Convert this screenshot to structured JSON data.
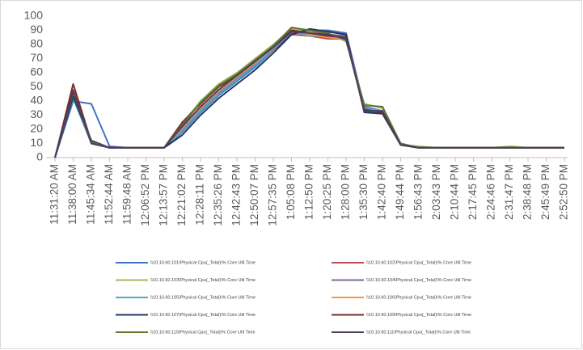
{
  "chart_data": {
    "type": "line",
    "categories": [
      "11:31:20 AM",
      "11:38:00 AM",
      "11:45:34 AM",
      "11:52:44 AM",
      "11:59:48 AM",
      "12:06:52 PM",
      "12:13:57 PM",
      "12:21:02 PM",
      "12:28:11 PM",
      "12:35:26 PM",
      "12:42:43 PM",
      "12:50:07 PM",
      "12:57:35 PM",
      "1:05:08 PM",
      "1:12:50 PM",
      "1:20:25 PM",
      "1:28:00 PM",
      "1:35:30 PM",
      "1:42:40 PM",
      "1:49:44 PM",
      "1:56:43 PM",
      "2:03:43 PM",
      "2:10:44 PM",
      "2:17:45 PM",
      "2:24:46 PM",
      "2:31:47 PM",
      "2:38:48 PM",
      "2:45:49 PM",
      "2:52:50 PM"
    ],
    "ylim": [
      0,
      100
    ],
    "yticks": [
      0,
      10,
      20,
      30,
      40,
      50,
      60,
      70,
      80,
      90,
      100
    ],
    "series": [
      {
        "name": "\\\\10.10.60.101\\Physical Cpu(_Total)\\% Core Util Time",
        "color": "#4472c4",
        "values": [
          0,
          40,
          38,
          8,
          7,
          7,
          7,
          18,
          32,
          44,
          54,
          64,
          76,
          88,
          90,
          90,
          88,
          36,
          33,
          9,
          7,
          7,
          7,
          7,
          7,
          7,
          7,
          7,
          7
        ]
      },
      {
        "name": "\\\\10.10.60.102\\Physical Cpu(_Total)\\% Core Util Time",
        "color": "#c0504d",
        "values": [
          0,
          48,
          10,
          7,
          7,
          7,
          7,
          22,
          36,
          47,
          57,
          66,
          76,
          87,
          86,
          84,
          84,
          34,
          32,
          10,
          7,
          7,
          7,
          7,
          7,
          7,
          7,
          7,
          7
        ]
      },
      {
        "name": "\\\\10.10.60.103\\Physical Cpu(_Total)\\% Core Util Time",
        "color": "#9bbb59",
        "values": [
          0,
          45,
          11,
          7,
          7,
          7,
          7,
          24,
          40,
          52,
          60,
          70,
          80,
          91,
          89,
          88,
          82,
          38,
          35,
          9,
          8,
          7,
          7,
          7,
          7,
          8,
          7,
          7,
          7
        ]
      },
      {
        "name": "\\\\10.10.60.104\\Physical Cpu(_Total)\\% Core Util Time",
        "color": "#8064a2",
        "values": [
          0,
          44,
          12,
          7,
          7,
          7,
          7,
          20,
          34,
          46,
          56,
          66,
          77,
          88,
          90,
          87,
          86,
          33,
          32,
          9,
          7,
          7,
          7,
          7,
          7,
          7,
          7,
          7,
          7
        ]
      },
      {
        "name": "\\\\10.10.60.105\\Physical Cpu(_Total)\\% Core Util Time",
        "color": "#4bacc6",
        "values": [
          0,
          42,
          10,
          7,
          7,
          7,
          7,
          19,
          33,
          45,
          55,
          65,
          77,
          89,
          86,
          86,
          85,
          35,
          33,
          9,
          7,
          7,
          7,
          7,
          7,
          7,
          7,
          7,
          7
        ]
      },
      {
        "name": "\\\\10.10.60.106\\Physical Cpu(_Total)\\% Core Util Time",
        "color": "#f79646",
        "values": [
          0,
          46,
          11,
          7,
          7,
          7,
          7,
          21,
          35,
          47,
          57,
          67,
          78,
          90,
          87,
          85,
          84,
          34,
          32,
          9,
          7,
          7,
          7,
          7,
          7,
          7,
          7,
          7,
          7
        ]
      },
      {
        "name": "\\\\10.10.60.107\\Physical Cpu(_Total)\\% Core Util Time",
        "color": "#1f3864",
        "values": [
          0,
          43,
          12,
          7,
          7,
          7,
          7,
          16,
          30,
          42,
          52,
          62,
          74,
          87,
          91,
          89,
          87,
          32,
          31,
          9,
          7,
          7,
          7,
          7,
          7,
          7,
          7,
          7,
          7
        ]
      },
      {
        "name": "\\\\10.10.60.109\\Physical Cpu(_Total)\\% Core Util Time",
        "color": "#772c2a",
        "values": [
          0,
          52,
          11,
          7,
          7,
          7,
          7,
          25,
          38,
          50,
          58,
          68,
          79,
          90,
          88,
          86,
          85,
          34,
          32,
          9,
          7,
          7,
          7,
          7,
          7,
          7,
          7,
          7,
          7
        ]
      },
      {
        "name": "\\\\10.10.60.110\\Physical Cpu(_Total)\\% Core Util Time",
        "color": "#5f7530",
        "values": [
          0,
          46,
          11,
          7,
          7,
          7,
          7,
          23,
          39,
          51,
          59,
          69,
          79,
          92,
          90,
          88,
          83,
          37,
          36,
          10,
          7,
          7,
          7,
          7,
          7,
          7,
          7,
          7,
          7
        ]
      },
      {
        "name": "\\\\10.10.60.111\\Physical Cpu(_Total)\\% Core Util Time",
        "color": "#4d3b62",
        "values": [
          0,
          47,
          10,
          7,
          7,
          7,
          7,
          22,
          36,
          48,
          58,
          68,
          78,
          89,
          88,
          87,
          84,
          33,
          33,
          9,
          7,
          7,
          7,
          7,
          7,
          7,
          7,
          7,
          7
        ]
      }
    ]
  }
}
